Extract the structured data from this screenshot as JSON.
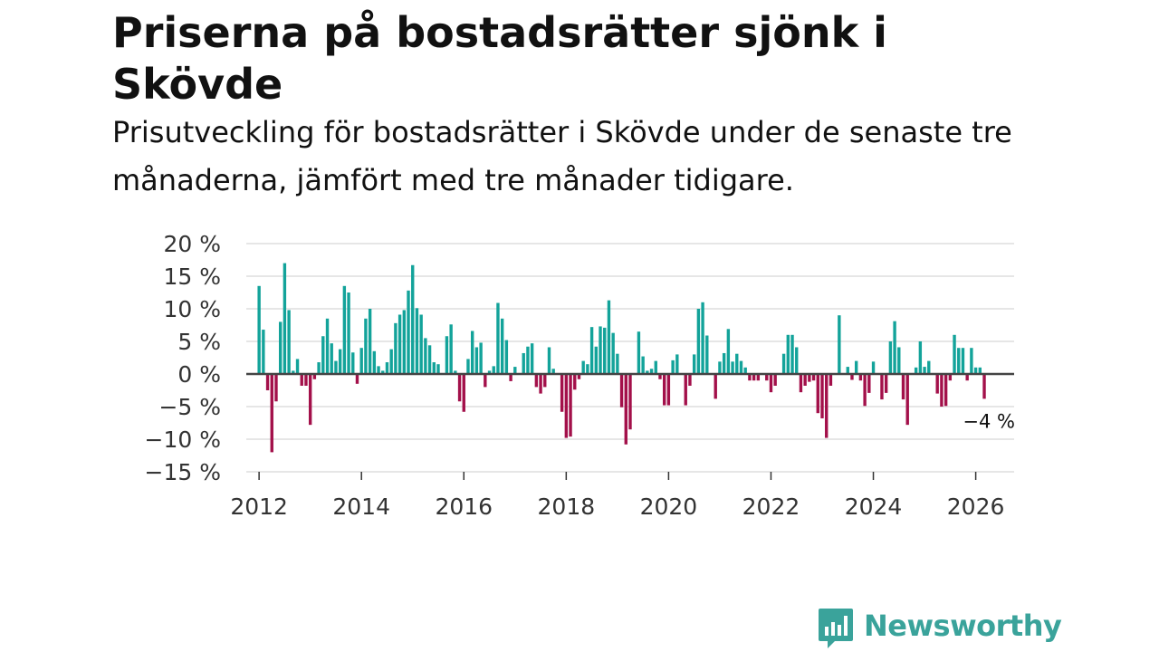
{
  "header": {
    "title": "Priserna på bostadsrätter sjönk i Skövde",
    "subtitle": "Prisutveckling för bostadsrätter i Skövde under de senaste tre månaderna, jämfört med tre månader tidigare."
  },
  "chart_data": {
    "type": "bar",
    "title": "Priserna på bostadsrätter sjönk i Skövde",
    "subtitle": "Prisutveckling för bostadsrätter i Skövde under de senaste tre månaderna, jämfört med tre månader tidigare.",
    "xlabel": "",
    "ylabel": "",
    "ylim": [
      -15,
      20
    ],
    "xlim": [
      2011.75,
      2026.75
    ],
    "grid": true,
    "y_ticks": [
      20,
      15,
      10,
      5,
      0,
      -5,
      -10,
      -15
    ],
    "y_tick_labels": [
      "20 %",
      "15 %",
      "10 %",
      "5 %",
      "0 %",
      "−5 %",
      "−10 %",
      "−15 %"
    ],
    "x_ticks": [
      2012,
      2014,
      2016,
      2018,
      2020,
      2022,
      2024,
      2026
    ],
    "x_tick_labels": [
      "2012",
      "2014",
      "2016",
      "2018",
      "2020",
      "2022",
      "2024",
      "2026"
    ],
    "start_year": 2012,
    "start_month": 1,
    "positive_color": "#13a39a",
    "negative_color": "#a3104a",
    "annotation": "−4 %",
    "values": [
      13.5,
      6.8,
      -2.5,
      -12,
      -4.2,
      8,
      17,
      9.8,
      0.5,
      2.3,
      -1.8,
      -1.8,
      -7.8,
      -0.8,
      1.8,
      5.8,
      8.5,
      4.7,
      2,
      3.8,
      13.5,
      12.5,
      3.3,
      -1.5,
      4,
      8.5,
      10,
      3.5,
      1.2,
      0.5,
      1.8,
      3.8,
      7.8,
      9.1,
      9.8,
      12.8,
      16.7,
      10.1,
      9.1,
      5.5,
      4.4,
      1.8,
      1.5,
      0,
      5.8,
      7.6,
      0.5,
      -4.2,
      -5.8,
      2.3,
      6.6,
      4.1,
      4.8,
      -2,
      0.5,
      1.2,
      10.9,
      8.5,
      5.2,
      -1.1,
      1.1,
      0,
      3.2,
      4.2,
      4.7,
      -2,
      -3,
      -2,
      4.1,
      0.8,
      0,
      -5.8,
      -9.8,
      -9.6,
      -2.4,
      -0.8,
      2,
      1.5,
      7.2,
      4.2,
      7.3,
      7.1,
      11.3,
      6.3,
      3.1,
      -5.1,
      -10.8,
      -8.5,
      0,
      6.5,
      2.7,
      0.5,
      0.8,
      2,
      -0.8,
      -4.8,
      -4.8,
      2.1,
      3,
      0,
      -4.8,
      -1.8,
      3,
      10,
      11,
      5.9,
      0,
      -3.8,
      1.9,
      3.2,
      6.9,
      1.9,
      3.1,
      2,
      1,
      -1,
      -1,
      -1,
      0,
      -1,
      -2.8,
      -1.8,
      0,
      3.1,
      6,
      6,
      4.1,
      -2.8,
      -1.8,
      -1.2,
      -1,
      -6,
      -6.8,
      -9.8,
      -1.8,
      0,
      9,
      0,
      1.1,
      -0.9,
      2,
      -1,
      -4.9,
      -2.9,
      1.9,
      0,
      -3.9,
      -2.9,
      5,
      8.1,
      4.1,
      -3.9,
      -7.8,
      0,
      1,
      5,
      1.1,
      2,
      0,
      -3,
      -5,
      -4.9,
      -1,
      6,
      4,
      4,
      -1,
      4,
      1,
      1,
      -3.8
    ]
  },
  "branding": {
    "name": "Newsworthy",
    "brand_color": "#3aa39b"
  }
}
